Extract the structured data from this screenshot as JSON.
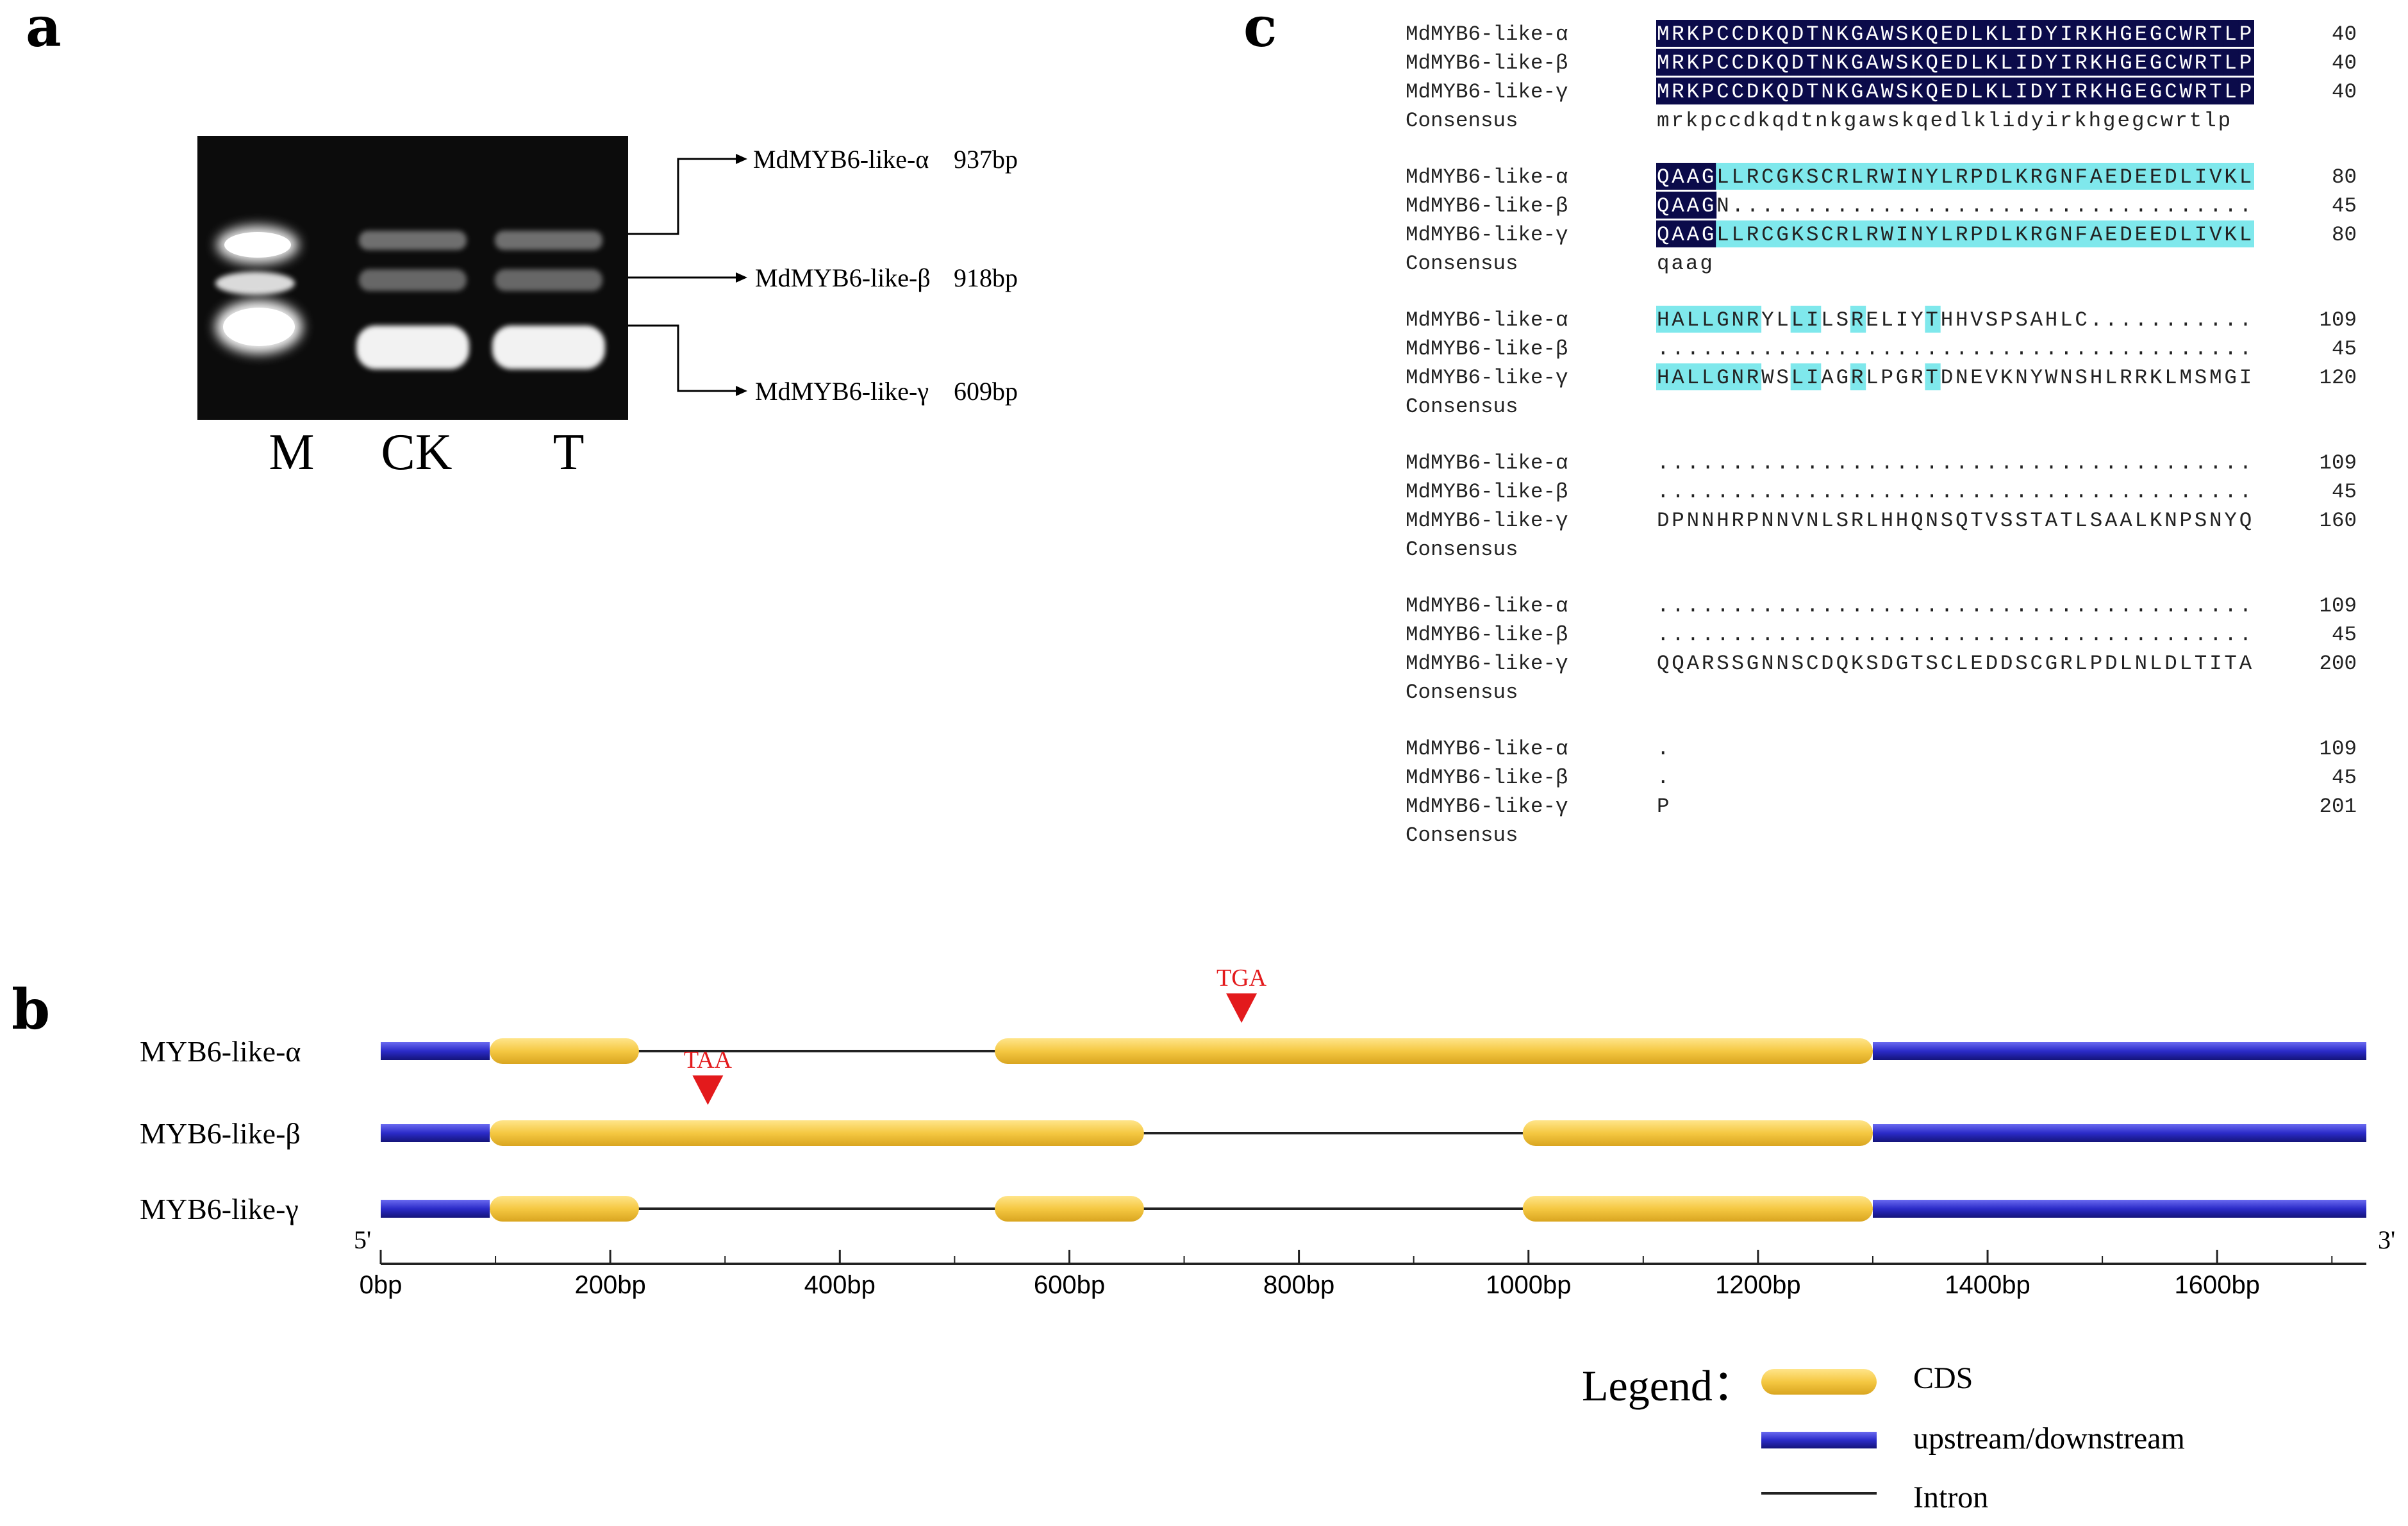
{
  "panels": {
    "a": "a",
    "b": "b",
    "c": "c"
  },
  "gel": {
    "lanes": [
      "M",
      "CK",
      "T"
    ],
    "bands": [
      {
        "name": "MdMYB6-like-α",
        "size": "937bp"
      },
      {
        "name": "MdMYB6-like-β",
        "size": "918bp"
      },
      {
        "name": "MdMYB6-like-γ",
        "size": "609bp"
      }
    ]
  },
  "alignment": {
    "blocks": [
      {
        "rows": [
          {
            "name": "MdMYB6-like-α",
            "seq": "MRKPCCDKQDTNKGAWSKQEDLKLIDYIRKHGEGCWRTLP",
            "num": "40"
          },
          {
            "name": "MdMYB6-like-β",
            "seq": "MRKPCCDKQDTNKGAWSKQEDLKLIDYIRKHGEGCWRTLP",
            "num": "40"
          },
          {
            "name": "MdMYB6-like-γ",
            "seq": "MRKPCCDKQDTNKGAWSKQEDLKLIDYIRKHGEGCWRTLP",
            "num": "40"
          },
          {
            "name": "Consensus",
            "seq": "mrkpccdkqdtnkgawskqedlklidyirkhgegcwrtlp",
            "num": ""
          }
        ]
      },
      {
        "rows": [
          {
            "name": "MdMYB6-like-α",
            "seq": "QAAGLLRCGKSCRLRWINYLRPDLKRGNFAEDEEDLIVKL",
            "num": "80"
          },
          {
            "name": "MdMYB6-like-β",
            "seq": "QAAGN...................................",
            "num": "45"
          },
          {
            "name": "MdMYB6-like-γ",
            "seq": "QAAGLLRCGKSCRLRWINYLRPDLKRGNFAEDEEDLIVKL",
            "num": "80"
          },
          {
            "name": "Consensus",
            "seq": "qaag",
            "num": ""
          }
        ]
      },
      {
        "rows": [
          {
            "name": "MdMYB6-like-α",
            "seq": "HALLGNRYLLILSRELIYTHHVSPSAHLC...........",
            "num": "109"
          },
          {
            "name": "MdMYB6-like-β",
            "seq": "........................................",
            "num": "45"
          },
          {
            "name": "MdMYB6-like-γ",
            "seq": "HALLGNRWSLIAGRLPGRTDNEVKNYWNSHLRRKLMSMGI",
            "num": "120"
          },
          {
            "name": "Consensus",
            "seq": "",
            "num": ""
          }
        ]
      },
      {
        "rows": [
          {
            "name": "MdMYB6-like-α",
            "seq": "........................................",
            "num": "109"
          },
          {
            "name": "MdMYB6-like-β",
            "seq": "........................................",
            "num": "45"
          },
          {
            "name": "MdMYB6-like-γ",
            "seq": "DPNNHRPNNVNLSRLHHQNSQTVSSTATLSAALKNPSNYQ",
            "num": "160"
          },
          {
            "name": "Consensus",
            "seq": "",
            "num": ""
          }
        ]
      },
      {
        "rows": [
          {
            "name": "MdMYB6-like-α",
            "seq": "........................................",
            "num": "109"
          },
          {
            "name": "MdMYB6-like-β",
            "seq": "........................................",
            "num": "45"
          },
          {
            "name": "MdMYB6-like-γ",
            "seq": "QQARSSGNNSCDQKSDGTSCLEDDSCGRLPDLNLDLTITA",
            "num": "200"
          },
          {
            "name": "Consensus",
            "seq": "",
            "num": ""
          }
        ]
      },
      {
        "rows": [
          {
            "name": "MdMYB6-like-α",
            "seq": ".",
            "num": "109"
          },
          {
            "name": "MdMYB6-like-β",
            "seq": ".",
            "num": "45"
          },
          {
            "name": "MdMYB6-like-γ",
            "seq": "P",
            "num": "201"
          },
          {
            "name": "Consensus",
            "seq": "",
            "num": ""
          }
        ]
      }
    ],
    "highlight_colors": {
      "identical": "#0b0b4a",
      "similar": "#7fe8ec",
      "identical_text": "#ffffff",
      "plain_text": "#222222"
    }
  },
  "gene_structure": {
    "genes": [
      {
        "label": "MYB6-like-α",
        "upstream": [
          0,
          95
        ],
        "downstream": [
          1300,
          1730
        ],
        "cds": [
          [
            95,
            225
          ],
          [
            535,
            1300
          ]
        ],
        "codon": {
          "label": "TGA",
          "pos": 750
        }
      },
      {
        "label": "MYB6-like-β",
        "upstream": [
          0,
          95
        ],
        "downstream": [
          1300,
          1730
        ],
        "cds": [
          [
            95,
            665
          ],
          [
            995,
            1300
          ]
        ],
        "codon": {
          "label": "TAA",
          "pos": 285
        }
      },
      {
        "label": "MYB6-like-γ",
        "upstream": [
          0,
          95
        ],
        "downstream": [
          1300,
          1730
        ],
        "cds": [
          [
            95,
            225
          ],
          [
            535,
            665
          ],
          [
            995,
            1300
          ]
        ],
        "codon": null
      }
    ],
    "axis": {
      "min": 0,
      "max": 1730,
      "ticks": [
        0,
        200,
        400,
        600,
        800,
        1000,
        1200,
        1400,
        1600
      ],
      "tick_labels": [
        "0bp",
        "200bp",
        "400bp",
        "600bp",
        "800bp",
        "1000bp",
        "1200bp",
        "1400bp",
        "1600bp"
      ],
      "five_prime": "5'",
      "three_prime": "3'"
    },
    "colors": {
      "cds": "#f5c842",
      "utr": "#2b2bc8",
      "intron": "#222222",
      "codon": "#e31a1c"
    },
    "legend": {
      "title": "Legend：",
      "items": [
        "CDS",
        "upstream/downstream",
        "Intron"
      ]
    }
  }
}
